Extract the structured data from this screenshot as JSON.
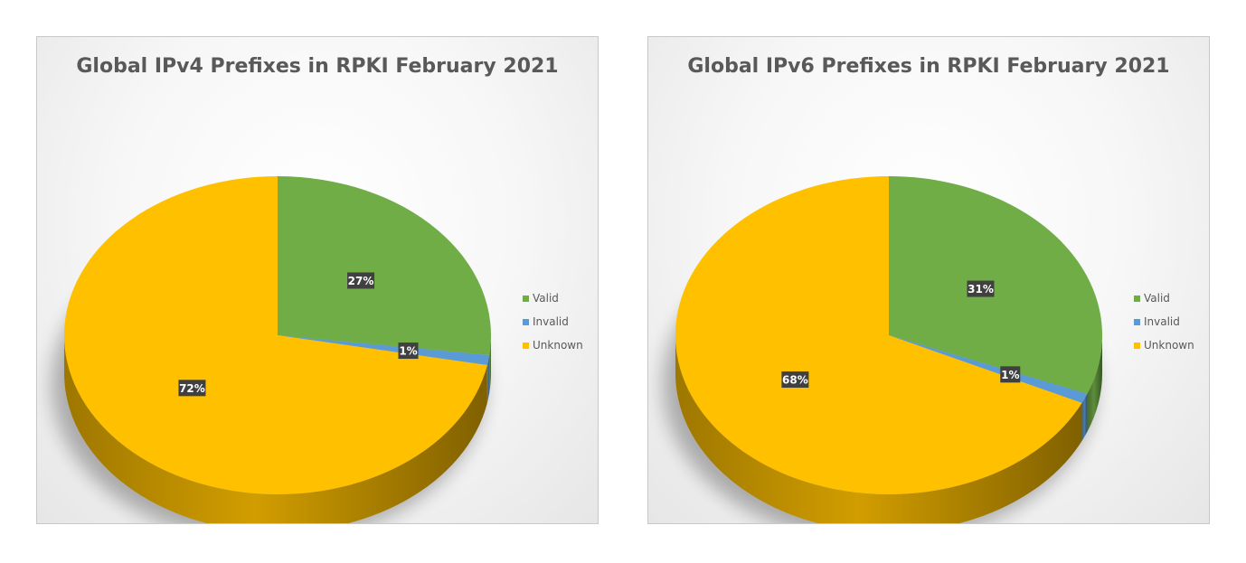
{
  "colors": {
    "Valid": "#70ad47",
    "Invalid": "#5b9bd5",
    "Unknown": "#ffc000",
    "label_bg": "#404040"
  },
  "chart_data": [
    {
      "type": "pie",
      "title": "Global IPv4 Prefixes in RPKI February 2021",
      "legend_position": "right",
      "categories": [
        "Valid",
        "Invalid",
        "Unknown"
      ],
      "values": [
        27,
        1,
        72
      ],
      "data_labels": [
        "27%",
        "1%",
        "72%"
      ]
    },
    {
      "type": "pie",
      "title": "Global IPv6 Prefixes in RPKI February 2021",
      "legend_position": "right",
      "categories": [
        "Valid",
        "Invalid",
        "Unknown"
      ],
      "values": [
        31,
        1,
        68
      ],
      "data_labels": [
        "31%",
        "1%",
        "68%"
      ]
    }
  ]
}
